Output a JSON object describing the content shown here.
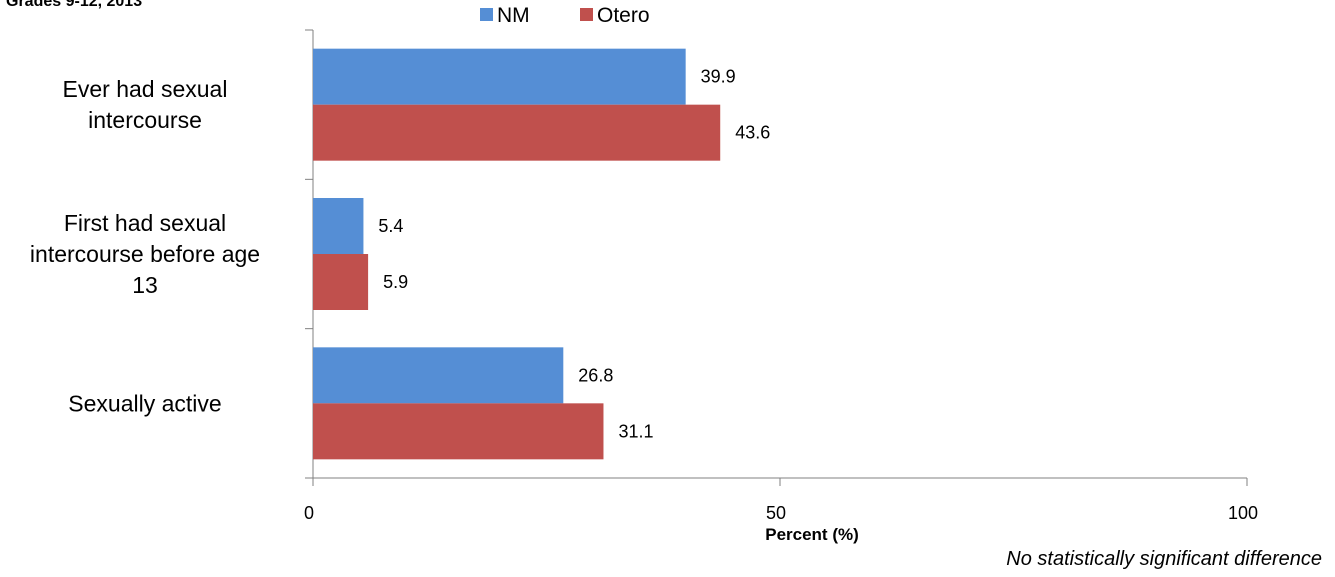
{
  "header": {
    "subtitle": "Grades 9-12, 2013"
  },
  "footnote": "No statistically significant difference",
  "chart_data": {
    "type": "bar",
    "orientation": "horizontal",
    "title": "",
    "subtitle": "Grades 9-12, 2013",
    "categories": [
      "Ever had sexual intercourse",
      "First had sexual intercourse before age 13",
      "Sexually active"
    ],
    "category_lines": [
      [
        "Ever had sexual",
        "intercourse"
      ],
      [
        "First had sexual",
        "intercourse before age",
        "13"
      ]
    ],
    "series": [
      {
        "name": "NM",
        "color": "#558ED5",
        "values": [
          39.9,
          5.4,
          26.8
        ]
      },
      {
        "name": "Otero",
        "color": "#C0504D",
        "values": [
          43.6,
          5.9,
          31.1
        ]
      }
    ],
    "xlabel": "Percent (%)",
    "ylabel": "",
    "xlim": [
      0,
      100
    ],
    "xticks": [
      0,
      50,
      100
    ],
    "grid": false,
    "legend_position": "top"
  }
}
